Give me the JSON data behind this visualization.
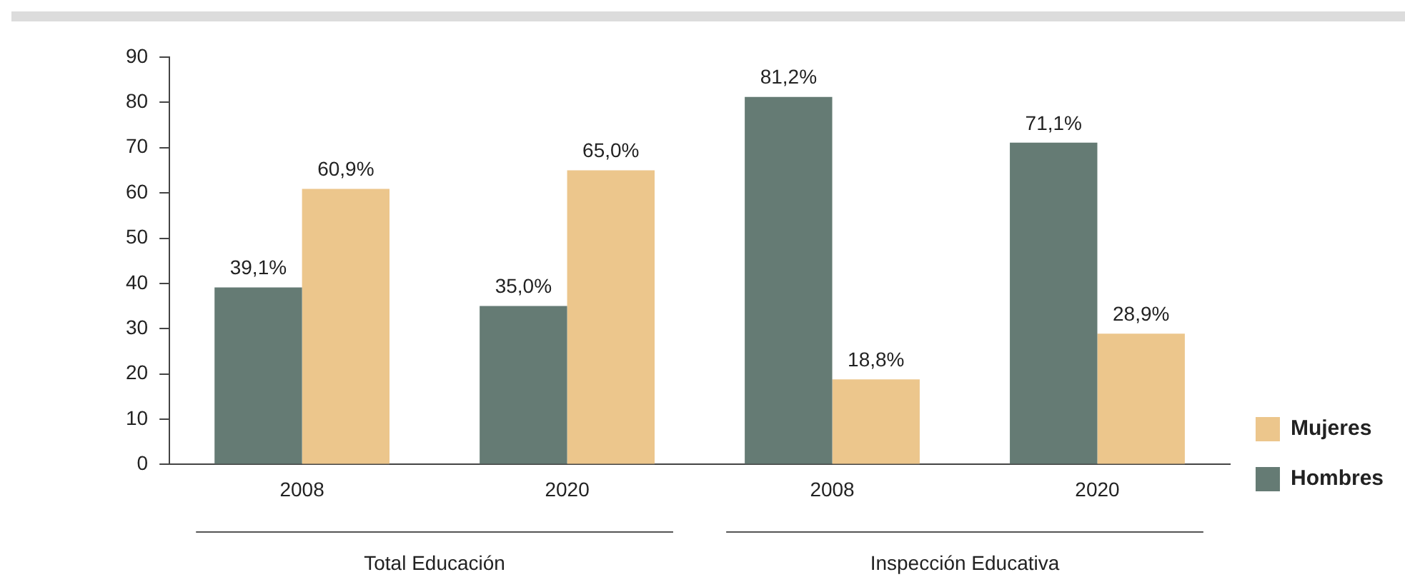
{
  "chart_data": {
    "type": "bar",
    "categories": [
      "2008",
      "2020",
      "2008",
      "2020"
    ],
    "series": [
      {
        "name": "Hombres",
        "color": "#657b74",
        "values": [
          39.1,
          35.0,
          81.2,
          71.1
        ],
        "value_labels": [
          "39,1%",
          "35,0%",
          "81,2%",
          "71,1%"
        ]
      },
      {
        "name": "Mujeres",
        "color": "#ecc68c",
        "values": [
          60.9,
          65.0,
          18.8,
          28.9
        ],
        "value_labels": [
          "60,9%",
          "65,0%",
          "18,8%",
          "28,9%"
        ]
      }
    ],
    "ylim": [
      0,
      90
    ],
    "yticks": [
      0,
      10,
      20,
      30,
      40,
      50,
      60,
      70,
      80,
      90
    ],
    "grid": false,
    "legend": "right",
    "annotations": [
      "Total Educación",
      "Inspección Educativa"
    ]
  }
}
